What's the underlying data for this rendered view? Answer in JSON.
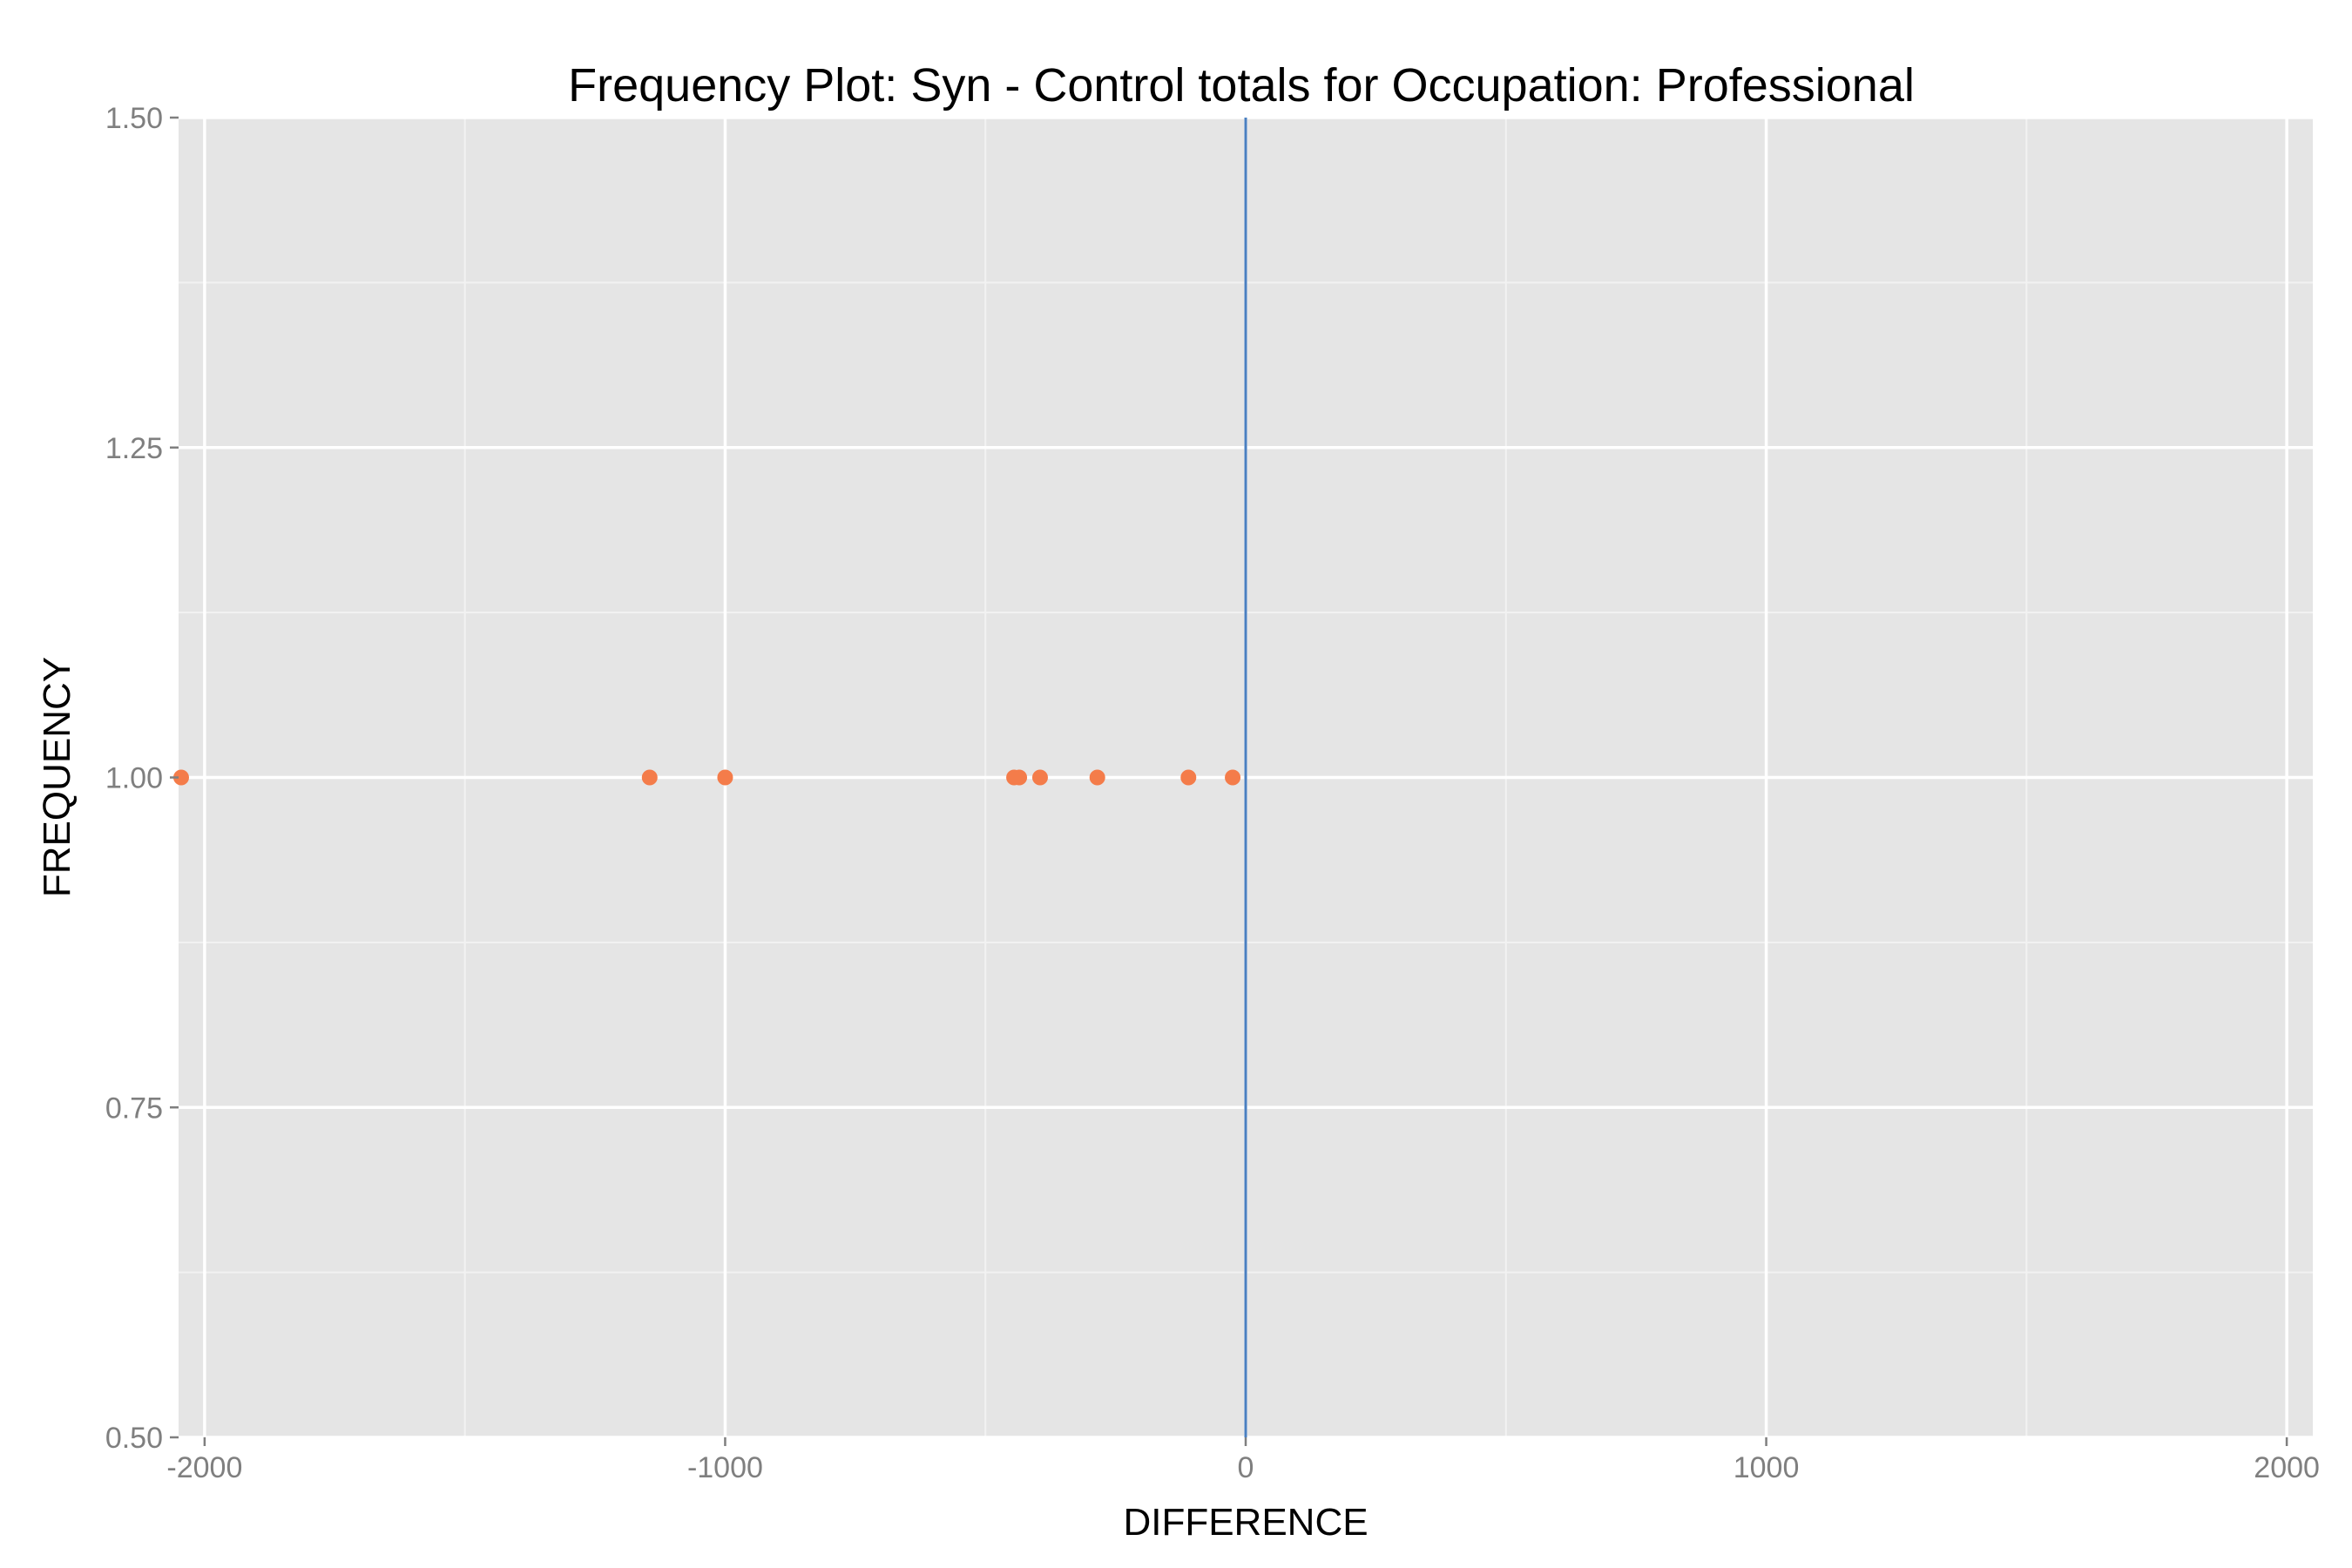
{
  "chart_data": {
    "type": "scatter",
    "title": "Frequency Plot: Syn - Control totals for Occupation: Professional",
    "xlabel": "DIFFERENCE",
    "ylabel": "FREQUENCY",
    "xlim": [
      -2050,
      2050
    ],
    "ylim": [
      0.5,
      1.5
    ],
    "x_ticks": [
      -2000,
      -1000,
      0,
      1000,
      2000
    ],
    "x_tick_labels": [
      "-2000",
      "-1000",
      "0",
      "1000",
      "2000"
    ],
    "y_ticks": [
      0.5,
      0.75,
      1.0,
      1.25,
      1.5
    ],
    "y_tick_labels": [
      "0.50",
      "0.75",
      "1.00",
      "1.25",
      "1.50"
    ],
    "grid": true,
    "reference_line": {
      "x": 0,
      "color": "#4a7fc0"
    },
    "series": [
      {
        "color": "#f47c4a",
        "x": [
          -2045,
          -1145,
          -1000,
          -445,
          -435,
          -395,
          -285,
          -110,
          -25
        ],
        "y": [
          1,
          1,
          1,
          1,
          1,
          1,
          1,
          1,
          1
        ]
      }
    ],
    "colors": {
      "panel_background": "#e5e5e5",
      "major_grid": "#ffffff",
      "minor_grid": "#f2f2f2"
    }
  }
}
